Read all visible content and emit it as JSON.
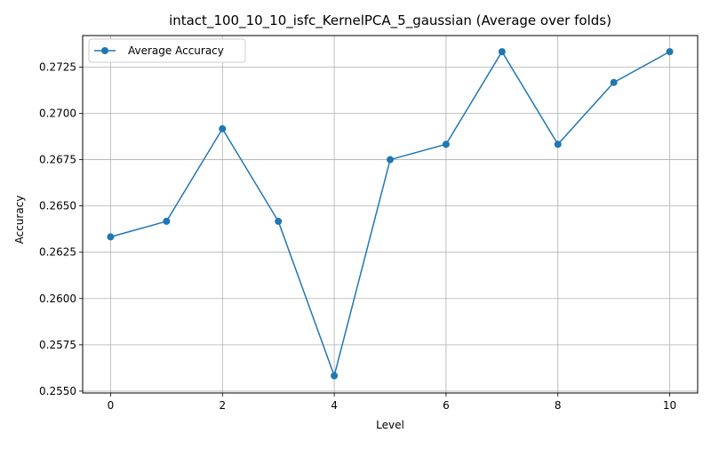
{
  "chart_data": {
    "type": "line",
    "title": "intact_100_10_10_isfc_KernelPCA_5_gaussian (Average over folds)",
    "xlabel": "Level",
    "ylabel": "Accuracy",
    "xlim": [
      -0.5,
      10.5
    ],
    "ylim": [
      0.2549,
      0.2742
    ],
    "xticks": [
      0,
      2,
      4,
      6,
      8,
      10
    ],
    "xtick_labels": [
      "0",
      "2",
      "4",
      "6",
      "8",
      "10"
    ],
    "yticks": [
      0.255,
      0.2575,
      0.26,
      0.2625,
      0.265,
      0.2675,
      0.27,
      0.2725
    ],
    "ytick_labels": [
      "0.2550",
      "0.2575",
      "0.2600",
      "0.2625",
      "0.2650",
      "0.2675",
      "0.2700",
      "0.2725"
    ],
    "grid": true,
    "legend_position": "top-left",
    "x": [
      0,
      1,
      2,
      3,
      4,
      5,
      6,
      7,
      8,
      9,
      10
    ],
    "series": [
      {
        "name": "Average Accuracy",
        "color": "#1f77b4",
        "marker": "circle",
        "values": [
          0.26333,
          0.26417,
          0.26917,
          0.26417,
          0.25583,
          0.2675,
          0.26833,
          0.27333,
          0.26833,
          0.27167,
          0.27333
        ]
      }
    ]
  }
}
